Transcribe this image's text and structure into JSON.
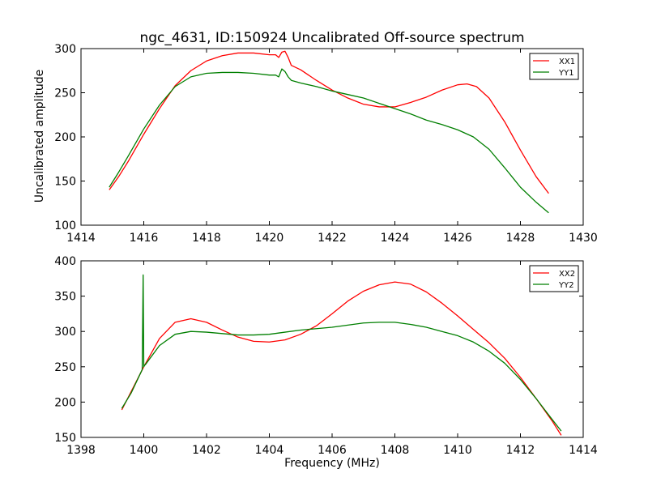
{
  "title": "ngc_4631, ID:150924 Uncalibrated Off-source spectrum",
  "ylabel": "Uncalibrated amplitude",
  "xlabel": "Frequency (MHz)",
  "chart_data": [
    {
      "type": "line",
      "title": "ngc_4631, ID:150924 Uncalibrated Off-source spectrum",
      "xlabel": "",
      "ylabel": "Uncalibrated amplitude",
      "xlim": [
        1414,
        1430
      ],
      "ylim": [
        100,
        300
      ],
      "xticks": [
        1414,
        1416,
        1418,
        1420,
        1422,
        1424,
        1426,
        1428,
        1430
      ],
      "yticks": [
        100,
        150,
        200,
        250,
        300
      ],
      "grid": false,
      "legend": "top-right",
      "series": [
        {
          "name": "XX1",
          "color": "#ff0000",
          "x": [
            1414.9,
            1415.2,
            1415.5,
            1416.0,
            1416.5,
            1417.0,
            1417.5,
            1418.0,
            1418.5,
            1419.0,
            1419.5,
            1420.0,
            1420.2,
            1420.3,
            1420.4,
            1420.5,
            1420.6,
            1420.7,
            1421.0,
            1421.5,
            1422.0,
            1422.5,
            1423.0,
            1423.5,
            1424.0,
            1424.5,
            1425.0,
            1425.5,
            1426.0,
            1426.3,
            1426.6,
            1427.0,
            1427.5,
            1428.0,
            1428.5,
            1428.9
          ],
          "y": [
            140,
            155,
            172,
            203,
            232,
            258,
            275,
            286,
            292,
            295,
            295,
            293,
            293,
            290,
            296,
            297,
            290,
            281,
            276,
            264,
            253,
            244,
            237,
            234,
            234,
            239,
            245,
            253,
            259,
            260,
            257,
            244,
            217,
            185,
            155,
            136
          ]
        },
        {
          "name": "YY1",
          "color": "#007f00",
          "x": [
            1414.9,
            1415.2,
            1415.5,
            1416.0,
            1416.5,
            1417.0,
            1417.5,
            1418.0,
            1418.5,
            1419.0,
            1419.5,
            1420.0,
            1420.2,
            1420.3,
            1420.4,
            1420.5,
            1420.6,
            1420.7,
            1421.0,
            1421.5,
            1422.0,
            1422.5,
            1423.0,
            1423.5,
            1424.0,
            1424.5,
            1425.0,
            1425.5,
            1426.0,
            1426.5,
            1427.0,
            1427.5,
            1428.0,
            1428.5,
            1428.9
          ],
          "y": [
            143,
            160,
            178,
            209,
            236,
            257,
            268,
            272,
            273,
            273,
            272,
            270,
            270,
            268,
            277,
            274,
            268,
            264,
            261,
            257,
            252,
            248,
            244,
            238,
            232,
            226,
            219,
            214,
            208,
            200,
            186,
            165,
            143,
            126,
            114
          ]
        }
      ]
    },
    {
      "type": "line",
      "title": "",
      "xlabel": "Frequency (MHz)",
      "ylabel": "",
      "xlim": [
        1398,
        1414
      ],
      "ylim": [
        150,
        400
      ],
      "xticks": [
        1398,
        1400,
        1402,
        1404,
        1406,
        1408,
        1410,
        1412,
        1414
      ],
      "yticks": [
        150,
        200,
        250,
        300,
        350,
        400
      ],
      "grid": false,
      "legend": "top-right",
      "series": [
        {
          "name": "XX2",
          "color": "#ff0000",
          "x": [
            1399.3,
            1399.6,
            1400.0,
            1400.5,
            1401.0,
            1401.5,
            1402.0,
            1402.5,
            1403.0,
            1403.5,
            1404.0,
            1404.5,
            1405.0,
            1405.5,
            1406.0,
            1406.5,
            1407.0,
            1407.5,
            1408.0,
            1408.5,
            1409.0,
            1409.5,
            1410.0,
            1410.5,
            1411.0,
            1411.5,
            1412.0,
            1412.5,
            1413.0,
            1413.3
          ],
          "y": [
            189,
            215,
            250,
            290,
            313,
            318,
            313,
            302,
            292,
            286,
            285,
            288,
            296,
            308,
            325,
            343,
            357,
            366,
            370,
            367,
            356,
            340,
            322,
            303,
            284,
            262,
            235,
            205,
            174,
            153
          ]
        },
        {
          "name": "YY2",
          "color": "#007f00",
          "x": [
            1399.3,
            1399.6,
            1399.95,
            1399.98,
            1400.0,
            1400.02,
            1400.05,
            1400.5,
            1401.0,
            1401.5,
            1402.0,
            1402.5,
            1403.0,
            1403.5,
            1404.0,
            1404.5,
            1405.0,
            1405.5,
            1406.0,
            1406.5,
            1407.0,
            1407.5,
            1408.0,
            1408.5,
            1409.0,
            1409.5,
            1410.0,
            1410.5,
            1411.0,
            1411.5,
            1412.0,
            1412.5,
            1413.0,
            1413.3
          ],
          "y": [
            191,
            213,
            246,
            380,
            250,
            252,
            253,
            280,
            296,
            300,
            299,
            297,
            295,
            295,
            296,
            299,
            302,
            304,
            306,
            309,
            312,
            313,
            313,
            310,
            306,
            300,
            294,
            285,
            272,
            255,
            232,
            205,
            176,
            159
          ]
        }
      ]
    }
  ]
}
